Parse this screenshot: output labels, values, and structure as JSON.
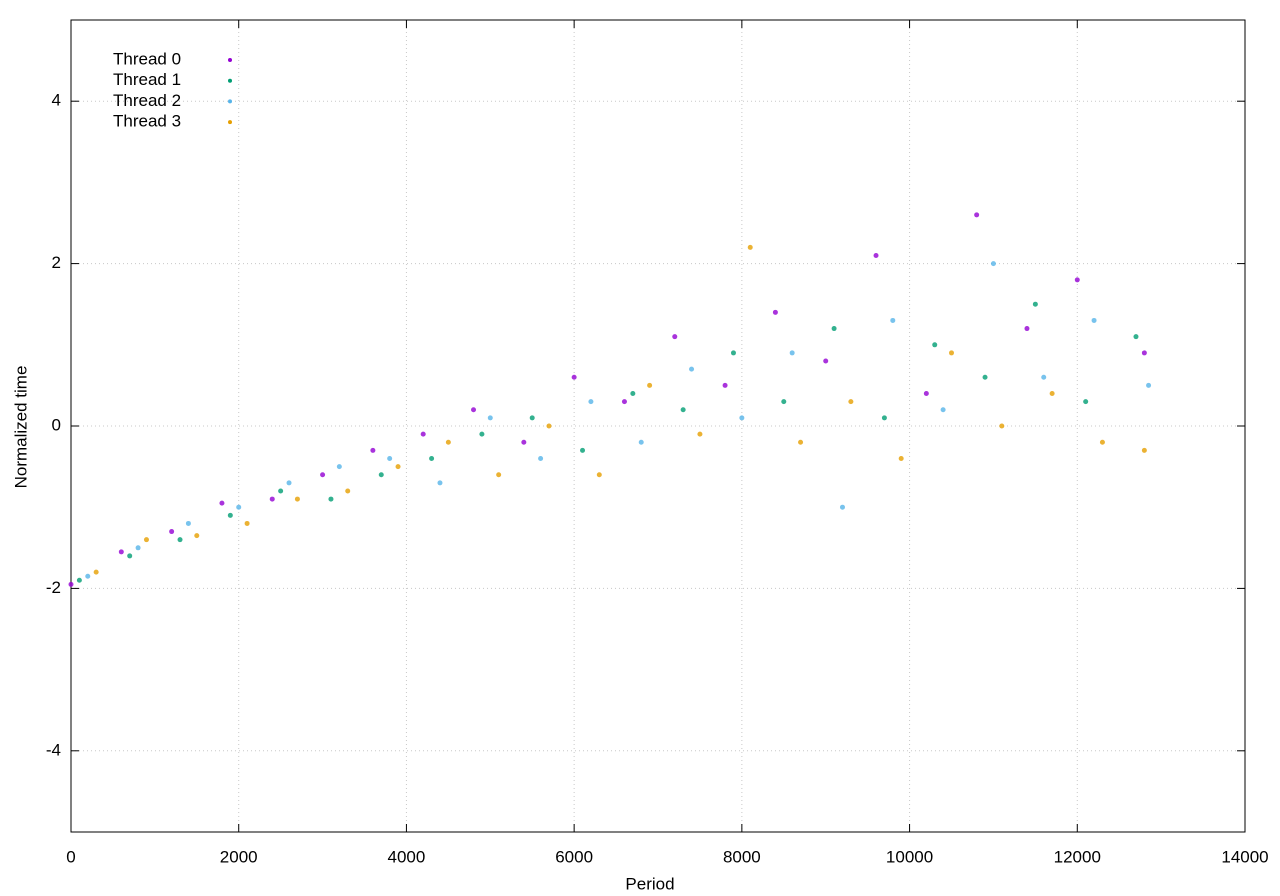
{
  "chart_data": {
    "type": "scatter",
    "xlabel": "Period",
    "ylabel": "Normalized time",
    "xlim": [
      0,
      14000
    ],
    "xticks": [
      0,
      2000,
      4000,
      6000,
      8000,
      10000,
      12000,
      14000
    ],
    "ylim": [
      -5,
      5
    ],
    "yticks": [
      -4,
      -2,
      0,
      2,
      4
    ],
    "grid": true,
    "legend": "upper left",
    "series": [
      {
        "name": "Thread 0",
        "color": "#9400d3",
        "x": [
          0,
          600,
          1200,
          1800,
          2400,
          3000,
          3600,
          4200,
          4800,
          5400,
          6000,
          6600,
          7200,
          7800,
          8400,
          9000,
          9600,
          10200,
          10800,
          11400,
          12000,
          12800
        ],
        "values": [
          -1.95,
          -1.55,
          -1.3,
          -0.95,
          -0.9,
          -0.6,
          -0.3,
          -0.1,
          0.2,
          -0.2,
          0.6,
          0.3,
          1.1,
          0.5,
          1.4,
          0.8,
          2.1,
          0.4,
          2.6,
          1.2,
          1.8,
          0.9
        ]
      },
      {
        "name": "Thread 1",
        "color": "#009e73",
        "x": [
          100,
          700,
          1300,
          1900,
          2500,
          3100,
          3700,
          4300,
          4900,
          5500,
          6100,
          6700,
          7300,
          7900,
          8500,
          9100,
          9700,
          10300,
          10900,
          11500,
          12100,
          12700
        ],
        "values": [
          -1.9,
          -1.6,
          -1.4,
          -1.1,
          -0.8,
          -0.9,
          -0.6,
          -0.4,
          -0.1,
          0.1,
          -0.3,
          0.4,
          0.2,
          0.9,
          0.3,
          1.2,
          0.1,
          1.0,
          0.6,
          1.5,
          0.3,
          1.1
        ]
      },
      {
        "name": "Thread 2",
        "color": "#56b4e9",
        "x": [
          200,
          800,
          1400,
          2000,
          2600,
          3200,
          3800,
          4400,
          5000,
          5600,
          6200,
          6800,
          7400,
          8000,
          8600,
          9200,
          9800,
          10400,
          11000,
          11600,
          12200,
          12850
        ],
        "values": [
          -1.85,
          -1.5,
          -1.2,
          -1.0,
          -0.7,
          -0.5,
          -0.4,
          -0.7,
          0.1,
          -0.4,
          0.3,
          -0.2,
          0.7,
          0.1,
          0.9,
          -1.0,
          1.3,
          0.2,
          2.0,
          0.6,
          1.3,
          0.5
        ]
      },
      {
        "name": "Thread 3",
        "color": "#e69f00",
        "x": [
          300,
          900,
          1500,
          2100,
          2700,
          3300,
          3900,
          4500,
          5100,
          5700,
          6300,
          6900,
          7500,
          8100,
          8700,
          9300,
          9900,
          10500,
          11100,
          11700,
          12300,
          12800
        ],
        "values": [
          -1.8,
          -1.4,
          -1.35,
          -1.2,
          -0.9,
          -0.8,
          -0.5,
          -0.2,
          -0.6,
          0.0,
          -0.6,
          0.5,
          -0.1,
          2.2,
          -0.2,
          0.3,
          -0.4,
          0.9,
          0.0,
          0.4,
          -0.2,
          -0.3
        ]
      }
    ]
  }
}
